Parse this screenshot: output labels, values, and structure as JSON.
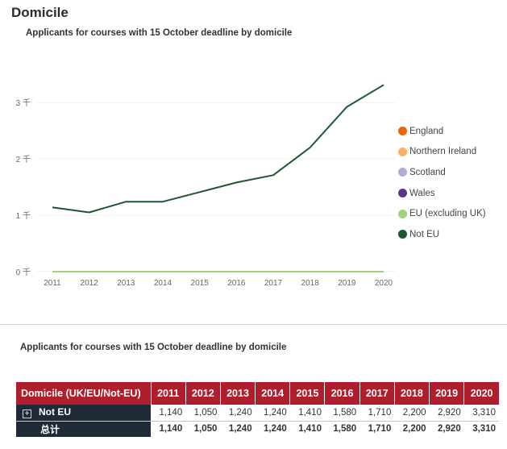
{
  "page": {
    "title": "Domicile"
  },
  "chart_data": {
    "type": "line",
    "title": "Applicants for courses with 15 October deadline by domicile",
    "xlabel": "",
    "ylabel": "",
    "x": [
      "2011",
      "2012",
      "2013",
      "2014",
      "2015",
      "2016",
      "2017",
      "2018",
      "2019",
      "2020"
    ],
    "ylim": [
      0,
      3500
    ],
    "yticks": [
      0,
      1000,
      2000,
      3000
    ],
    "ytick_labels": [
      "0 千",
      "1 千",
      "2 千",
      "3 千"
    ],
    "grid": true,
    "legend_position": "right",
    "series": [
      {
        "name": "England",
        "color": "#e8650a",
        "values": [
          0,
          0,
          0,
          0,
          0,
          0,
          0,
          0,
          0,
          0
        ]
      },
      {
        "name": "Northern Ireland",
        "color": "#f9b26b",
        "values": [
          0,
          0,
          0,
          0,
          0,
          0,
          0,
          0,
          0,
          0
        ]
      },
      {
        "name": "Scotland",
        "color": "#b3acd4",
        "values": [
          0,
          0,
          0,
          0,
          0,
          0,
          0,
          0,
          0,
          0
        ]
      },
      {
        "name": "Wales",
        "color": "#5b3596",
        "values": [
          0,
          0,
          0,
          0,
          0,
          0,
          0,
          0,
          0,
          0
        ]
      },
      {
        "name": "EU (excluding UK)",
        "color": "#9fd37f",
        "values": [
          0,
          0,
          0,
          0,
          0,
          0,
          0,
          0,
          0,
          0
        ]
      },
      {
        "name": "Not EU",
        "color": "#1f5632",
        "values": [
          1140,
          1050,
          1240,
          1240,
          1410,
          1580,
          1710,
          2200,
          2920,
          3310
        ]
      }
    ]
  },
  "table": {
    "title": "Applicants for courses with 15 October deadline by domicile",
    "header_label": "Domicile (UK/EU/Not-EU)",
    "years": [
      "2011",
      "2012",
      "2013",
      "2014",
      "2015",
      "2016",
      "2017",
      "2018",
      "2019",
      "2020"
    ],
    "rows": [
      {
        "label": "Not EU",
        "expand_symbol": "+",
        "values": [
          "1,140",
          "1,050",
          "1,240",
          "1,240",
          "1,410",
          "1,580",
          "1,710",
          "2,200",
          "2,920",
          "3,310"
        ]
      }
    ],
    "total": {
      "label": "总计",
      "values": [
        "1,140",
        "1,050",
        "1,240",
        "1,240",
        "1,410",
        "1,580",
        "1,710",
        "2,200",
        "2,920",
        "3,310"
      ]
    }
  }
}
